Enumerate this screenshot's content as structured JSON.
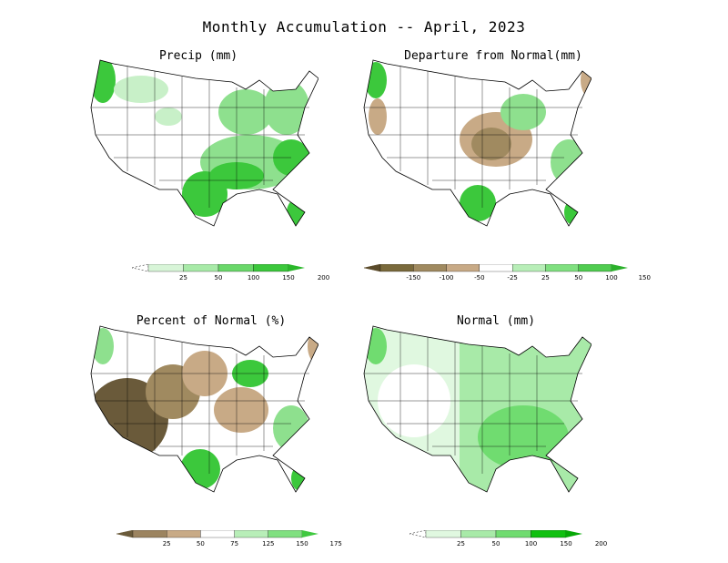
{
  "title": "Monthly Accumulation -- April, 2023",
  "panels": [
    {
      "id": "precip",
      "title": "Precip (mm)",
      "colorbar": {
        "labels": [
          "25",
          "50",
          "100",
          "150",
          "200"
        ],
        "colors": [
          "#ffffff",
          "#d8f5d8",
          "#a8eaa8",
          "#6ad86a",
          "#3cc83c",
          "#2ab82a"
        ]
      }
    },
    {
      "id": "departure",
      "title": "Departure from Normal(mm)",
      "colorbar": {
        "labels": [
          "-150",
          "-100",
          "-50",
          "-25",
          "25",
          "50",
          "100",
          "150"
        ],
        "colors": [
          "#5a4a2a",
          "#7a6a3c",
          "#a08a60",
          "#c8aa86",
          "#ffffff",
          "#b8eeb8",
          "#80e080",
          "#50cc50",
          "#2ab02a"
        ]
      }
    },
    {
      "id": "percent",
      "title": "Percent of Normal (%)",
      "colorbar": {
        "labels": [
          "25",
          "50",
          "75",
          "125",
          "150",
          "175"
        ],
        "colors": [
          "#6a5a3a",
          "#9c8460",
          "#c8aa86",
          "#ffffff",
          "#b8eeb8",
          "#80e080",
          "#40c840"
        ]
      }
    },
    {
      "id": "normal",
      "title": "Normal (mm)",
      "colorbar": {
        "labels": [
          "25",
          "50",
          "100",
          "150",
          "200"
        ],
        "colors": [
          "#ffffff",
          "#e0f8e0",
          "#a8eaa8",
          "#70dc70",
          "#10c010",
          "#06a806"
        ]
      }
    }
  ],
  "colors": {
    "green_light": "#c8f0c8",
    "green_mid": "#8ee08e",
    "green_dark": "#3cc83c",
    "brown_light": "#c8aa86",
    "brown_mid": "#a08a60",
    "brown_dark": "#6a5a3a",
    "outline": "#000000"
  }
}
